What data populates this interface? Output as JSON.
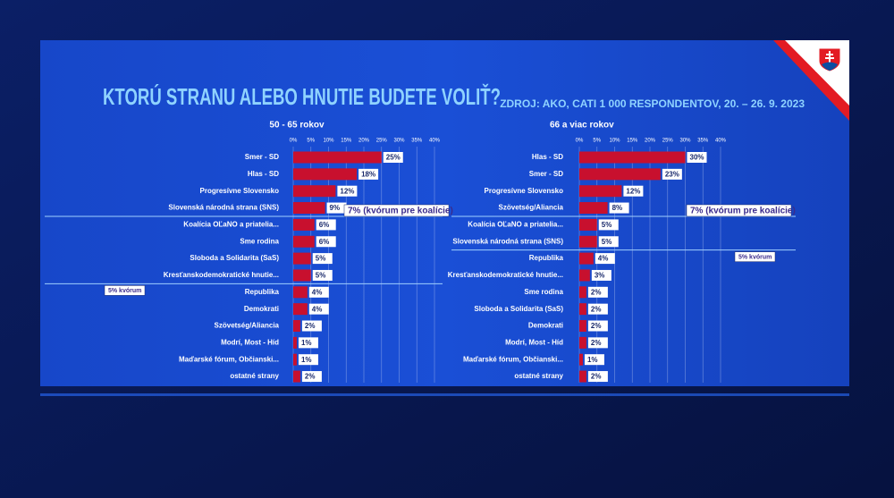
{
  "header": {
    "title": "KTORÚ STRANU ALEBO HNUTIE BUDETE VOLIŤ?",
    "source": "ZDROJ: AKO, CATI 1 000 RESPONDENTOV, 20. – 26. 9. 2023"
  },
  "chart_data": [
    {
      "type": "bar",
      "orientation": "horizontal",
      "title": "50  - 65 rokov",
      "color": "#c8102e",
      "categories": [
        "Smer - SD",
        "Hlas - SD",
        "Progresívne Slovensko",
        "Slovenská národná strana (SNS)",
        "Koalícia OĽaNO a priatelia...",
        "Sme rodina",
        "Sloboda a Solidarita (SaS)",
        "Kresťanskodemokratické hnutie...",
        "Republika",
        "Demokrati",
        "Szövetség/Aliancia",
        "Modrí, Most - Híd",
        "Maďarské fórum, Občianski...",
        "ostatné strany"
      ],
      "values": [
        25,
        18,
        12,
        9,
        6,
        6,
        5,
        5,
        4,
        4,
        2,
        1,
        1,
        2
      ],
      "value_labels": [
        "25%",
        "18%",
        "12%",
        "9%",
        "6%",
        "6%",
        "5%",
        "5%",
        "4%",
        "4%",
        "2%",
        "1%",
        "1%",
        "2%"
      ],
      "xlim": [
        0,
        40
      ],
      "xticks": [
        {
          "value": 0,
          "label": "0%"
        },
        {
          "value": 5,
          "label": "5%"
        },
        {
          "value": 10,
          "label": "10%"
        },
        {
          "value": 15,
          "label": "15%"
        },
        {
          "value": 20,
          "label": "20%"
        },
        {
          "value": 25,
          "label": "25%"
        },
        {
          "value": 30,
          "label": "30%"
        },
        {
          "value": 35,
          "label": "35%"
        },
        {
          "value": 40,
          "label": "40%"
        }
      ],
      "grid": true,
      "thresholds": [
        {
          "value": 7,
          "label": "7% (kvórum pre koalície)"
        },
        {
          "value": 5,
          "label": "5% kvórum"
        }
      ]
    },
    {
      "type": "bar",
      "orientation": "horizontal",
      "title": "66 a viac rokov",
      "color": "#c8102e",
      "categories": [
        "Hlas - SD",
        "Smer - SD",
        "Progresívne Slovensko",
        "Szövetség/Aliancia",
        "Koalícia OĽaNO a priatelia...",
        "Slovenská národná strana (SNS)",
        "Republika",
        "Kresťanskodemokratické hnutie...",
        "Sme rodina",
        "Sloboda a Solidarita (SaS)",
        "Demokrati",
        "Modrí, Most - Híd",
        "Maďarské fórum, Občianski...",
        "ostatné strany"
      ],
      "values": [
        30,
        23,
        12,
        8,
        5,
        5,
        4,
        3,
        2,
        2,
        2,
        2,
        1,
        2
      ],
      "value_labels": [
        "30%",
        "23%",
        "12%",
        "8%",
        "5%",
        "5%",
        "4%",
        "3%",
        "2%",
        "2%",
        "2%",
        "2%",
        "1%",
        "2%"
      ],
      "xlim": [
        0,
        40
      ],
      "xticks": [
        {
          "value": 0,
          "label": "0%"
        },
        {
          "value": 5,
          "label": "5%"
        },
        {
          "value": 10,
          "label": "10%"
        },
        {
          "value": 15,
          "label": "15%"
        },
        {
          "value": 20,
          "label": "20%"
        },
        {
          "value": 25,
          "label": "25%"
        },
        {
          "value": 30,
          "label": "30%"
        },
        {
          "value": 35,
          "label": "35%"
        },
        {
          "value": 40,
          "label": "40%"
        }
      ],
      "grid": true,
      "thresholds": [
        {
          "value": 7,
          "label": "7% (kvórum pre koalície)"
        },
        {
          "value": 5,
          "label": "5% kvórum"
        }
      ]
    }
  ]
}
